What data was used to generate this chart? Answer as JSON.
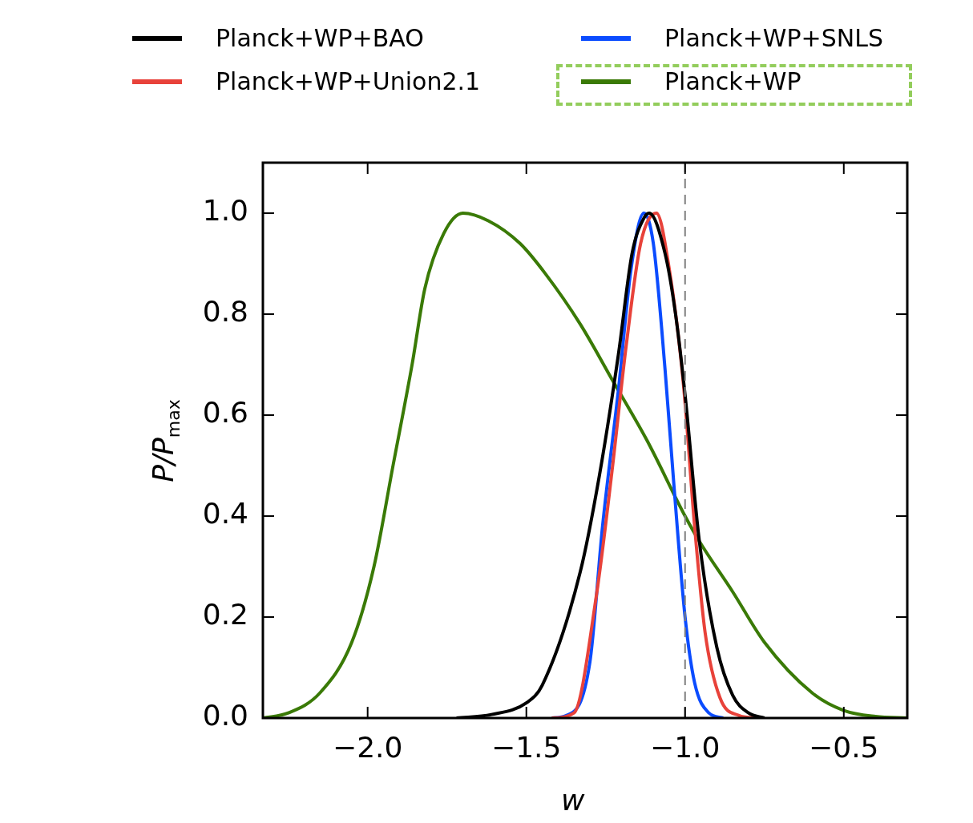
{
  "chart_data": {
    "type": "line",
    "xlabel": "w",
    "ylabel": "P/P$_{max}$",
    "legend": "top",
    "grid": false,
    "marker": "none",
    "line_style": "solid",
    "xlim": [
      -2.33,
      -0.3
    ],
    "xticks": [
      {
        "value": -2,
        "label": "−2.0"
      },
      {
        "value": -1.5,
        "label": "−1.5"
      },
      {
        "value": -1,
        "label": "−1.0"
      },
      {
        "value": -0.5,
        "label": "−0.5"
      }
    ],
    "ylim": [
      0,
      1.1
    ],
    "yticks": [
      {
        "value": 0,
        "label": "0.0"
      },
      {
        "value": 0.2,
        "label": "0.2"
      },
      {
        "value": 0.4,
        "label": "0.4"
      },
      {
        "value": 0.6,
        "label": "0.6"
      },
      {
        "value": 0.8,
        "label": "0.8"
      },
      {
        "value": 1,
        "label": "1.0"
      }
    ],
    "ref_lines": [
      {
        "axis": "x",
        "value": -1,
        "color": "#808080",
        "line_style": "dashed"
      }
    ],
    "series": [
      {
        "name": "Planck+WP+BAO",
        "color": "#000000",
        "x": [
          -1.72,
          -1.61,
          -1.5,
          -1.45,
          -1.33,
          -1.27,
          -1.21,
          -1.167,
          -1.13,
          -1.113,
          -1.063,
          -1.03,
          -1.0,
          -0.955,
          -0.9,
          -0.85,
          -0.8,
          -0.75
        ],
        "values": [
          0,
          0.007,
          0.03,
          0.065,
          0.29,
          0.48,
          0.72,
          0.92,
          0.99,
          1.0,
          0.92,
          0.8,
          0.64,
          0.35,
          0.14,
          0.045,
          0.01,
          0
        ]
      },
      {
        "name": "Planck+WP+Union2.1",
        "color": "#e8423a",
        "x": [
          -1.42,
          -1.35,
          -1.28,
          -1.23,
          -1.185,
          -1.14,
          -1.09,
          -1.05,
          -1.005,
          -0.97,
          -0.937,
          -0.89,
          -0.83,
          -0.78
        ],
        "values": [
          0,
          0.01,
          0.24,
          0.49,
          0.74,
          0.94,
          1.0,
          0.89,
          0.66,
          0.38,
          0.17,
          0.04,
          0.005,
          0
        ]
      },
      {
        "name": "Planck+WP+SNLS",
        "color": "#0b4cff",
        "x": [
          -1.42,
          -1.374,
          -1.3,
          -1.26,
          -1.21,
          -1.17,
          -1.13,
          -1.1,
          -1.063,
          -1.035,
          -1.0,
          -0.97,
          -0.925,
          -0.88
        ],
        "values": [
          0,
          0.005,
          0.11,
          0.38,
          0.65,
          0.89,
          1.0,
          0.94,
          0.69,
          0.46,
          0.2,
          0.07,
          0.01,
          0
        ]
      },
      {
        "name": "Planck+WP",
        "color": "#3a7a06",
        "x": [
          -2.33,
          -2.25,
          -2.15,
          -2.05,
          -1.98,
          -1.92,
          -1.86,
          -1.82,
          -1.76,
          -1.7,
          -1.62,
          -1.52,
          -1.44,
          -1.33,
          -1.225,
          -1.12,
          -1.0,
          -0.955,
          -0.85,
          -0.75,
          -0.6,
          -0.5,
          -0.4,
          -0.3
        ],
        "values": [
          0,
          0.01,
          0.05,
          0.15,
          0.3,
          0.5,
          0.7,
          0.85,
          0.96,
          1.0,
          0.985,
          0.94,
          0.88,
          0.78,
          0.665,
          0.55,
          0.4,
          0.35,
          0.25,
          0.15,
          0.05,
          0.015,
          0.003,
          0
        ]
      }
    ]
  }
}
